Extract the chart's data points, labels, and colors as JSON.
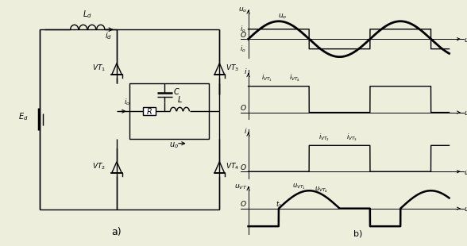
{
  "bg_color": "#eeeedc",
  "line_color": "#000000",
  "fig_width": 5.88,
  "fig_height": 3.1,
  "label_a": "a)",
  "label_b": "b)"
}
